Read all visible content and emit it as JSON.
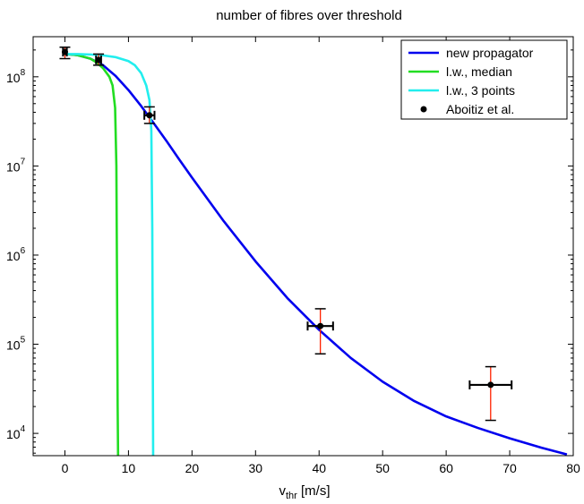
{
  "chart_data": {
    "type": "line",
    "title": "number of fibres over threshold",
    "xlabel": {
      "main": "v",
      "sub": "thr",
      "rest": " [m/s]"
    },
    "ylabel": "",
    "xlim": [
      -5,
      80
    ],
    "ylim_log10": [
      3.75,
      8.45
    ],
    "y_scale": "log",
    "grid": false,
    "legend_position": "top-right",
    "x_ticks": [
      0,
      10,
      20,
      30,
      40,
      50,
      60,
      70,
      80
    ],
    "y_ticks": [
      {
        "base": "10",
        "exp": "4",
        "value_log10": 4
      },
      {
        "base": "10",
        "exp": "5",
        "value_log10": 5
      },
      {
        "base": "10",
        "exp": "6",
        "value_log10": 6
      },
      {
        "base": "10",
        "exp": "7",
        "value_log10": 7
      },
      {
        "base": "10",
        "exp": "8",
        "value_log10": 8
      }
    ],
    "series": [
      {
        "name": "new propagator",
        "color": "#0000ee",
        "kind": "line",
        "x": [
          0,
          2,
          4,
          6,
          8,
          10,
          12,
          14,
          16,
          18,
          20,
          25,
          30,
          35,
          40,
          45,
          50,
          55,
          60,
          65,
          70,
          75,
          79
        ],
        "y": [
          180000000.0,
          175000000.0,
          160000000.0,
          135000000.0,
          102000000.0,
          71000000.0,
          47000000.0,
          30000000.0,
          19000000.0,
          11800000.0,
          7400000.0,
          2400000.0,
          850000.0,
          330000.0,
          145000.0,
          70000.0,
          38000.0,
          23000.0,
          15500.0,
          11500.0,
          8800.0,
          6900.0,
          5800.0
        ]
      },
      {
        "name": "l.w., median",
        "color": "#22dd22",
        "kind": "line",
        "x": [
          0,
          2,
          4,
          5,
          6,
          7,
          7.5,
          7.9,
          8.1,
          8.2,
          8.3,
          8.4
        ],
        "y": [
          180000000.0,
          175000000.0,
          160000000.0,
          145000000.0,
          125000000.0,
          100000000.0,
          80000000.0,
          45000000.0,
          10000000.0,
          500000.0,
          20000.0,
          3000.0
        ]
      },
      {
        "name": "l.w., 3 points",
        "color": "#22eeee",
        "kind": "line",
        "x": [
          0,
          2,
          4,
          6,
          8,
          10,
          11,
          12,
          12.8,
          13.3,
          13.6,
          13.75,
          13.85,
          13.9
        ],
        "y": [
          180000000.0,
          180000000.0,
          178000000.0,
          174000000.0,
          166000000.0,
          150000000.0,
          135000000.0,
          110000000.0,
          80000000.0,
          55000000.0,
          25000000.0,
          2000000.0,
          30000.0,
          3000.0
        ]
      },
      {
        "name": "Aboitiz et al.",
        "color": "#000000",
        "kind": "errorbar",
        "points": [
          {
            "x": 0,
            "y": 190000000.0,
            "x_err": 0.3,
            "y_low": 160000000.0,
            "y_high": 215000000.0
          },
          {
            "x": 5.3,
            "y": 155000000.0,
            "x_err": 0.4,
            "y_low": 135000000.0,
            "y_high": 180000000.0
          },
          {
            "x": 13.3,
            "y": 37000000.0,
            "x_err": 0.8,
            "y_low": 30000000.0,
            "y_high": 46000000.0
          },
          {
            "x": 40.2,
            "y": 160000.0,
            "x_err": 2.0,
            "y_low": 78000.0,
            "y_high": 250000.0
          },
          {
            "x": 67,
            "y": 35000.0,
            "x_err": 3.3,
            "y_low": 14000.0,
            "y_high": 56000.0
          }
        ]
      }
    ]
  }
}
